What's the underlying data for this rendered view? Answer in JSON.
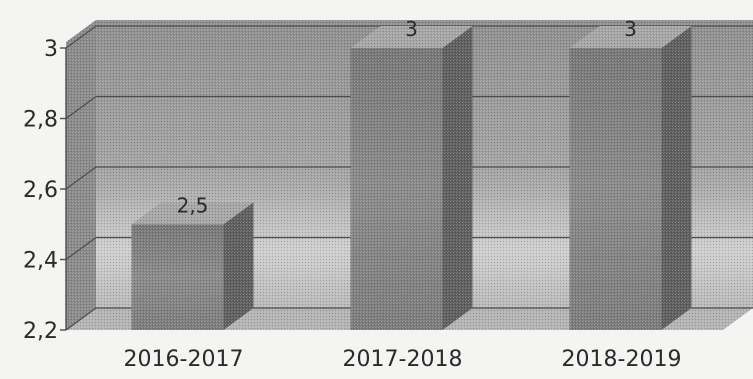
{
  "chart_data": {
    "type": "bar",
    "style": "3d-column",
    "categories": [
      "2016-2017",
      "2017-2018",
      "2018-2019"
    ],
    "values": [
      2.5,
      3,
      3
    ],
    "data_labels": [
      "2,5",
      "3",
      "3"
    ],
    "y_ticks": [
      "2,2",
      "2,4",
      "2,6",
      "2,8",
      "3"
    ],
    "ylim": [
      2.2,
      3.0
    ],
    "grid": true,
    "colors": {
      "wall": "#9c9c9c",
      "floor": "#b4b4b4",
      "bar_front": "#808080",
      "bar_side": "#5f5f5f",
      "bar_top": "#a6a6a6",
      "grid": "#4c4c4c",
      "text": "#2a2a2a"
    }
  }
}
